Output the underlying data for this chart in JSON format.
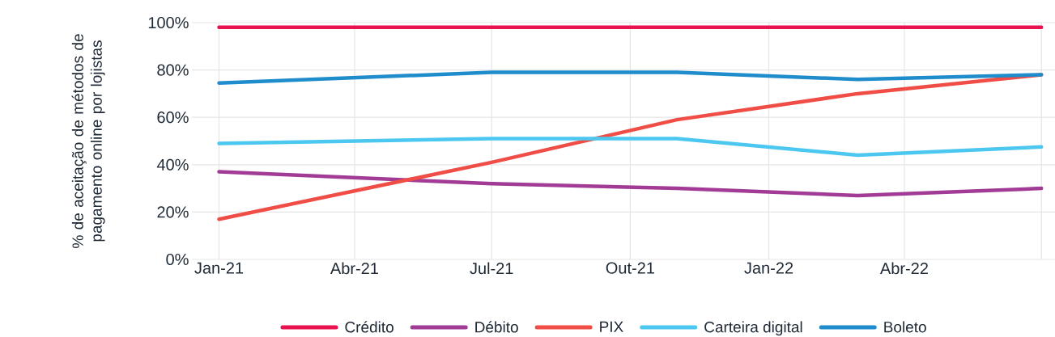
{
  "chart_data": {
    "type": "line",
    "ylabel": "% de aceitação de métodos de pagamento online por lojistas",
    "x": [
      "2021-01",
      "2021-07",
      "2021-11",
      "2022-03",
      "2022-07"
    ],
    "series": [
      {
        "name": "Crédito",
        "color": "#e8124f",
        "values": [
          98,
          98,
          98,
          98,
          98
        ]
      },
      {
        "name": "Débito",
        "color": "#a23b96",
        "values": [
          37,
          32,
          30,
          27,
          30
        ]
      },
      {
        "name": "PIX",
        "color": "#ef4d45",
        "values": [
          17,
          41,
          59,
          70,
          78
        ]
      },
      {
        "name": "Carteira digital",
        "color": "#4cc8f0",
        "values": [
          49,
          51,
          51,
          44,
          47.5
        ]
      },
      {
        "name": "Boleto",
        "color": "#1f8ccc",
        "values": [
          74.5,
          79,
          79,
          76,
          78
        ]
      }
    ],
    "xlim": [
      "2020-12-14",
      "2022-07-10"
    ],
    "xticks": [
      {
        "value": "2021-01",
        "label": "Jan-21"
      },
      {
        "value": "2021-04",
        "label": "Abr-21"
      },
      {
        "value": "2021-07",
        "label": "Jul-21"
      },
      {
        "value": "2021-10",
        "label": "Out-21"
      },
      {
        "value": "2022-01",
        "label": "Jan-22"
      },
      {
        "value": "2022-04",
        "label": "Abr-22"
      },
      {
        "value": "2022-07",
        "label": null
      }
    ],
    "ylim": [
      0,
      100
    ],
    "yticks": [
      {
        "value": 0,
        "label": "0%"
      },
      {
        "value": 20,
        "label": "20%"
      },
      {
        "value": 40,
        "label": "40%"
      },
      {
        "value": 60,
        "label": "60%"
      },
      {
        "value": 80,
        "label": "80%"
      },
      {
        "value": 100,
        "label": "100%"
      }
    ],
    "grid": true,
    "legend": "bottom",
    "line_style": "solid"
  }
}
